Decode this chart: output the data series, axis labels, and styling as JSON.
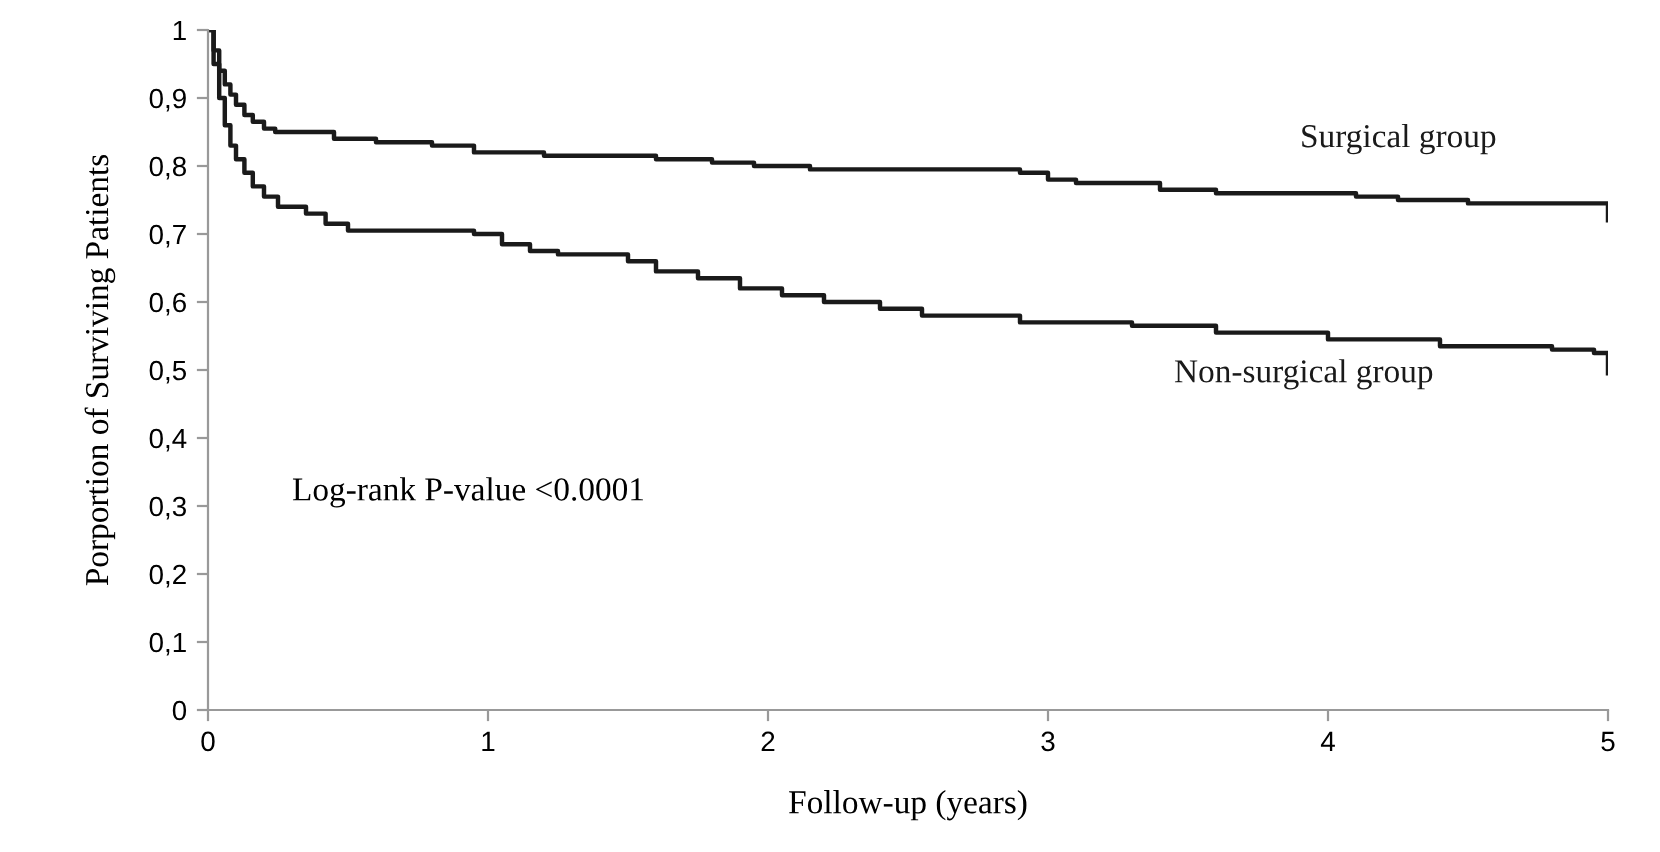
{
  "chart_data": {
    "type": "step",
    "xlabel": "Follow-up (years)",
    "ylabel": "Porportion of Surviving Patients",
    "xlim": [
      0,
      5
    ],
    "ylim": [
      0,
      1
    ],
    "xticks": [
      0,
      1,
      2,
      3,
      4,
      5
    ],
    "yticks": [
      0,
      {
        "value": 0.1,
        "label": "0,1"
      },
      {
        "value": 0.2,
        "label": "0,2"
      },
      {
        "value": 0.3,
        "label": "0,3"
      },
      {
        "value": 0.4,
        "label": "0,4"
      },
      {
        "value": 0.5,
        "label": "0,5"
      },
      {
        "value": 0.6,
        "label": "0,6"
      },
      {
        "value": 0.7,
        "label": "0,7"
      },
      {
        "value": 0.8,
        "label": "0,8"
      },
      {
        "value": 0.9,
        "label": "0,9"
      },
      1
    ],
    "grid": false,
    "legend": false,
    "marker": "none",
    "line_style": "solid",
    "annotations": [
      "Log-rank P-value <0.0001"
    ],
    "series": [
      {
        "name": "Surgical group",
        "color": "#1a1a1a",
        "x": [
          0,
          0.02,
          0.04,
          0.06,
          0.08,
          0.1,
          0.13,
          0.16,
          0.2,
          0.24,
          0.45,
          0.6,
          0.8,
          0.95,
          1.2,
          1.6,
          1.8,
          1.95,
          2.15,
          2.9,
          3.0,
          3.1,
          3.4,
          3.6,
          4.1,
          4.25,
          4.5,
          5
        ],
        "values": [
          1,
          0.97,
          0.94,
          0.92,
          0.905,
          0.89,
          0.875,
          0.865,
          0.855,
          0.85,
          0.84,
          0.835,
          0.83,
          0.82,
          0.815,
          0.81,
          0.805,
          0.8,
          0.795,
          0.79,
          0.78,
          0.775,
          0.765,
          0.76,
          0.755,
          0.75,
          0.745,
          0.72
        ]
      },
      {
        "name": "Non-surgical group",
        "color": "#1a1a1a",
        "x": [
          0,
          0.02,
          0.04,
          0.06,
          0.08,
          0.1,
          0.13,
          0.16,
          0.2,
          0.25,
          0.35,
          0.42,
          0.5,
          0.95,
          1.05,
          1.15,
          1.25,
          1.5,
          1.6,
          1.75,
          1.9,
          2.05,
          2.2,
          2.4,
          2.55,
          2.9,
          3.3,
          3.6,
          4.0,
          4.4,
          4.8,
          4.95,
          5
        ],
        "values": [
          1,
          0.95,
          0.9,
          0.86,
          0.83,
          0.81,
          0.79,
          0.77,
          0.755,
          0.74,
          0.73,
          0.715,
          0.705,
          0.7,
          0.685,
          0.675,
          0.67,
          0.66,
          0.645,
          0.635,
          0.62,
          0.61,
          0.6,
          0.59,
          0.58,
          0.57,
          0.565,
          0.555,
          0.545,
          0.535,
          0.53,
          0.525,
          0.495
        ]
      }
    ]
  }
}
